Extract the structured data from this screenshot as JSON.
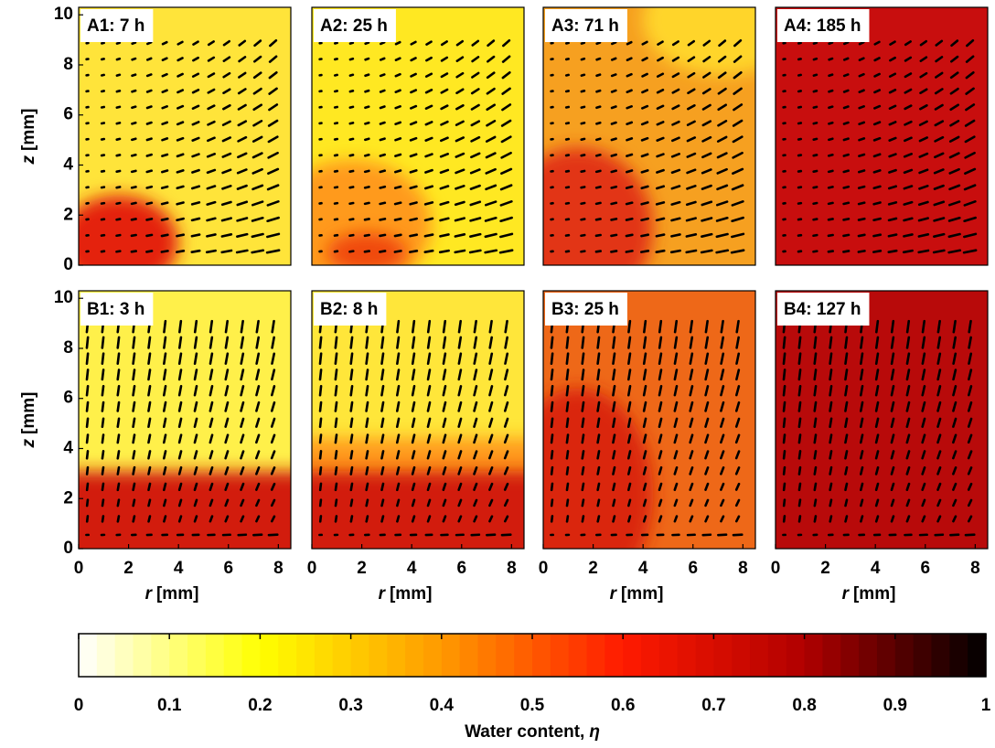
{
  "chart_data": [
    {
      "type": "heatmap",
      "title": "A1: 7 h",
      "xlim": [
        0,
        8.5
      ],
      "ylim": [
        0,
        10.3
      ],
      "yticks": [
        0,
        2,
        4,
        6,
        8,
        10
      ],
      "ylabel": {
        "symbol": "z",
        "unit": "[mm]"
      }
    },
    {
      "type": "heatmap",
      "title": "A2: 25 h",
      "xlim": [
        0,
        8.5
      ],
      "ylim": [
        0,
        10.3
      ]
    },
    {
      "type": "heatmap",
      "title": "A3: 71 h",
      "xlim": [
        0,
        8.5
      ],
      "ylim": [
        0,
        10.3
      ]
    },
    {
      "type": "heatmap",
      "title": "A4: 185 h",
      "xlim": [
        0,
        8.5
      ],
      "ylim": [
        0,
        10.3
      ]
    },
    {
      "type": "heatmap",
      "title": "B1: 3 h",
      "xlim": [
        0,
        8.5
      ],
      "ylim": [
        0,
        10.3
      ],
      "yticks": [
        0,
        2,
        4,
        6,
        8,
        10
      ],
      "ylabel": {
        "symbol": "z",
        "unit": "[mm]"
      },
      "xticks": [
        0,
        2,
        4,
        6,
        8
      ],
      "xlabel": {
        "symbol": "r",
        "unit": "[mm]"
      }
    },
    {
      "type": "heatmap",
      "title": "B2: 8 h",
      "xlim": [
        0,
        8.5
      ],
      "ylim": [
        0,
        10.3
      ],
      "xticks": [
        0,
        2,
        4,
        6,
        8
      ],
      "xlabel": {
        "symbol": "r",
        "unit": "[mm]"
      }
    },
    {
      "type": "heatmap",
      "title": "B3: 25 h",
      "xlim": [
        0,
        8.5
      ],
      "ylim": [
        0,
        10.3
      ],
      "xticks": [
        0,
        2,
        4,
        6,
        8
      ],
      "xlabel": {
        "symbol": "r",
        "unit": "[mm]"
      }
    },
    {
      "type": "heatmap",
      "title": "B4: 127 h",
      "xlim": [
        0,
        8.5
      ],
      "ylim": [
        0,
        10.3
      ],
      "xticks": [
        0,
        2,
        4,
        6,
        8
      ],
      "xlabel": {
        "symbol": "r",
        "unit": "[mm]"
      }
    },
    {
      "type": "colorbar",
      "xlim": [
        0,
        1
      ],
      "xticks": [
        0,
        0.1,
        0.2,
        0.3,
        0.4,
        0.5,
        0.6,
        0.7,
        0.8,
        0.9,
        1
      ],
      "xlabel": {
        "text": "Water content,",
        "symbol": "η"
      },
      "colors": [
        "#ffffff",
        "#ffff00",
        "#ff9900",
        "#ff1a00",
        "#b00000",
        "#000000"
      ]
    }
  ]
}
